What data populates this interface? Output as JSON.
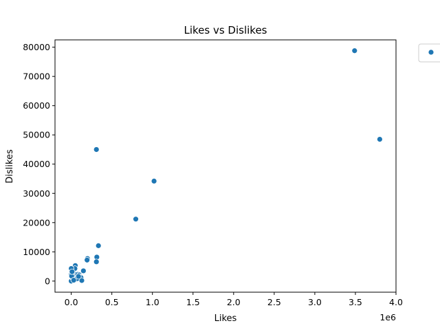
{
  "chart_data": {
    "type": "scatter",
    "title": "Likes vs Dislikes",
    "xlabel": "Likes",
    "ylabel": "Dislikes",
    "x_offset_label": "1e6",
    "xlim": [
      -200000,
      4000000
    ],
    "ylim": [
      -3800,
      82500
    ],
    "xticks": [
      0,
      500000,
      1000000,
      1500000,
      2000000,
      2500000,
      3000000,
      3500000,
      4000000
    ],
    "xtick_labels": [
      "0.0",
      "0.5",
      "1.0",
      "1.5",
      "2.0",
      "2.5",
      "3.0",
      "3.5",
      "4.0"
    ],
    "yticks": [
      0,
      10000,
      20000,
      30000,
      40000,
      50000,
      60000,
      70000,
      80000
    ],
    "ytick_labels": [
      "0",
      "10000",
      "20000",
      "30000",
      "40000",
      "50000",
      "60000",
      "70000",
      "80000"
    ],
    "grid": false,
    "legend_position": "outside-top-right",
    "color": "#1f77b4",
    "series": [
      {
        "x": [
          3490000,
          3800000,
          310000,
          1020000,
          795000,
          335000,
          315000,
          310000,
          200000,
          195000,
          150000,
          50000,
          45000,
          0,
          0,
          25000,
          15000,
          40000,
          60000,
          80000,
          100000,
          110000,
          120000,
          130000,
          0,
          20000,
          50000,
          70000,
          5000,
          30000,
          10000,
          90000
        ],
        "y": [
          78800,
          48500,
          45000,
          34200,
          21200,
          12100,
          8200,
          6600,
          7700,
          7200,
          3500,
          5300,
          4300,
          4300,
          0,
          2700,
          2200,
          1700,
          1400,
          2300,
          2100,
          1500,
          1200,
          200,
          2200,
          1000,
          500,
          800,
          1700,
          300,
          3200,
          1600
        ]
      }
    ]
  }
}
